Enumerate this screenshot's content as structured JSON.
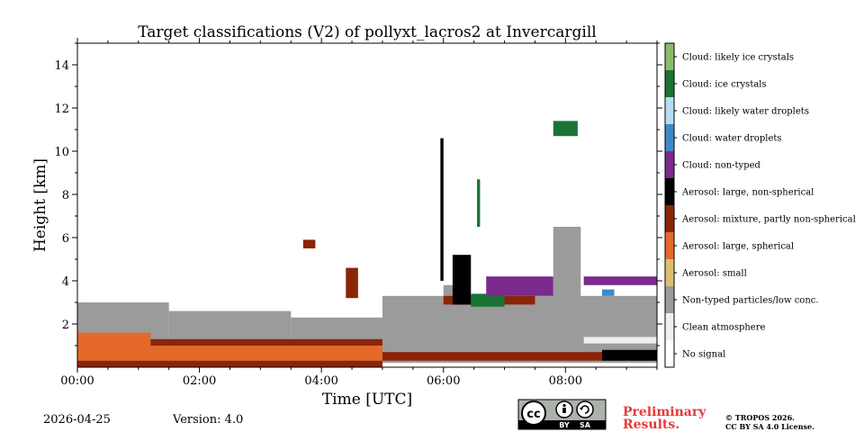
{
  "chart_data": {
    "type": "heatmap",
    "title": "Target classifications (V2) of pollyxt_lacros2 at Invercargill",
    "xlabel": "Time [UTC]",
    "ylabel": "Height [km]",
    "xlim": [
      0,
      9.5
    ],
    "ylim": [
      0,
      15
    ],
    "x_ticks": [
      {
        "value": 0,
        "label": "00:00"
      },
      {
        "value": 2,
        "label": "02:00"
      },
      {
        "value": 4,
        "label": "04:00"
      },
      {
        "value": 6,
        "label": "06:00"
      },
      {
        "value": 8,
        "label": "08:00"
      }
    ],
    "y_ticks": [
      {
        "value": 2,
        "label": "2"
      },
      {
        "value": 4,
        "label": "4"
      },
      {
        "value": 6,
        "label": "6"
      },
      {
        "value": 8,
        "label": "8"
      },
      {
        "value": 10,
        "label": "10"
      },
      {
        "value": 12,
        "label": "12"
      },
      {
        "value": 14,
        "label": "14"
      }
    ],
    "classes": [
      {
        "name": "No signal",
        "color": "#ffffff"
      },
      {
        "name": "Clean atmosphere",
        "color": "#efefef"
      },
      {
        "name": "Non-typed particles/low conc.",
        "color": "#9b9b9b"
      },
      {
        "name": "Aerosol: small",
        "color": "#dcc070"
      },
      {
        "name": "Aerosol: large, spherical",
        "color": "#e4692a"
      },
      {
        "name": "Aerosol: mixture, partly non-spherical",
        "color": "#8a2508"
      },
      {
        "name": "Aerosol: large, non-spherical",
        "color": "#000000"
      },
      {
        "name": "Cloud: non-typed",
        "color": "#7b2a8d"
      },
      {
        "name": "Cloud: water droplets",
        "color": "#3c8bc8"
      },
      {
        "name": "Cloud: likely water droplets",
        "color": "#b7dcf3"
      },
      {
        "name": "Cloud: ice crystals",
        "color": "#1b7434"
      },
      {
        "name": "Cloud: likely ice crystals",
        "color": "#8cba6a"
      }
    ],
    "regions": [
      {
        "cls": 2,
        "t": [
          0.0,
          1.5
        ],
        "h": [
          0.7,
          3.0
        ]
      },
      {
        "cls": 2,
        "t": [
          1.5,
          3.5
        ],
        "h": [
          0.7,
          2.6
        ]
      },
      {
        "cls": 2,
        "t": [
          3.5,
          5.0
        ],
        "h": [
          0.6,
          2.3
        ]
      },
      {
        "cls": 2,
        "t": [
          5.0,
          9.5
        ],
        "h": [
          0.2,
          3.3
        ]
      },
      {
        "cls": 2,
        "t": [
          7.8,
          8.25
        ],
        "h": [
          3.0,
          6.5
        ]
      },
      {
        "cls": 2,
        "t": [
          6.0,
          6.2
        ],
        "h": [
          3.0,
          3.8
        ]
      },
      {
        "cls": 1,
        "t": [
          8.3,
          9.5
        ],
        "h": [
          1.1,
          1.4
        ]
      },
      {
        "cls": 4,
        "t": [
          0.0,
          5.0
        ],
        "h": [
          0.2,
          1.1
        ]
      },
      {
        "cls": 4,
        "t": [
          0.0,
          1.2
        ],
        "h": [
          1.1,
          1.6
        ]
      },
      {
        "cls": 5,
        "t": [
          0.0,
          5.0
        ],
        "h": [
          0.0,
          0.3
        ]
      },
      {
        "cls": 5,
        "t": [
          1.2,
          5.0
        ],
        "h": [
          1.0,
          1.3
        ]
      },
      {
        "cls": 5,
        "t": [
          5.0,
          8.6
        ],
        "h": [
          0.3,
          0.7
        ]
      },
      {
        "cls": 5,
        "t": [
          6.0,
          7.5
        ],
        "h": [
          2.9,
          3.3
        ]
      },
      {
        "cls": 6,
        "t": [
          8.6,
          9.5
        ],
        "h": [
          0.3,
          0.8
        ]
      },
      {
        "cls": 6,
        "t": [
          6.15,
          6.45
        ],
        "h": [
          2.9,
          5.2
        ]
      },
      {
        "cls": 10,
        "t": [
          6.45,
          7.0
        ],
        "h": [
          2.8,
          3.4
        ]
      },
      {
        "cls": 7,
        "t": [
          6.7,
          7.8
        ],
        "h": [
          3.3,
          4.2
        ]
      },
      {
        "cls": 7,
        "t": [
          8.3,
          9.5
        ],
        "h": [
          3.8,
          4.2
        ]
      },
      {
        "cls": 8,
        "t": [
          8.6,
          8.8
        ],
        "h": [
          3.3,
          3.6
        ]
      },
      {
        "cls": 10,
        "t": [
          7.8,
          8.2
        ],
        "h": [
          10.7,
          11.4
        ]
      },
      {
        "cls": 10,
        "t": [
          6.55,
          6.6
        ],
        "h": [
          6.5,
          8.7
        ]
      },
      {
        "cls": 6,
        "t": [
          5.95,
          6.0
        ],
        "h": [
          4.0,
          10.6
        ]
      },
      {
        "cls": 5,
        "t": [
          4.4,
          4.6
        ],
        "h": [
          3.2,
          4.6
        ]
      },
      {
        "cls": 5,
        "t": [
          3.7,
          3.9
        ],
        "h": [
          5.5,
          5.9
        ]
      }
    ]
  },
  "footer": {
    "date": "2026-04-25",
    "version": "Version: 4.0",
    "preliminary_line1": "Preliminary",
    "preliminary_line2": "Results.",
    "copyright_line1": "© TROPOS 2026.",
    "copyright_line2": "CC BY SA 4.0 License.",
    "license_badge": {
      "cc": "cc",
      "by": "BY",
      "sa": "SA"
    }
  },
  "colors": {
    "preliminary": "#e8393b"
  }
}
